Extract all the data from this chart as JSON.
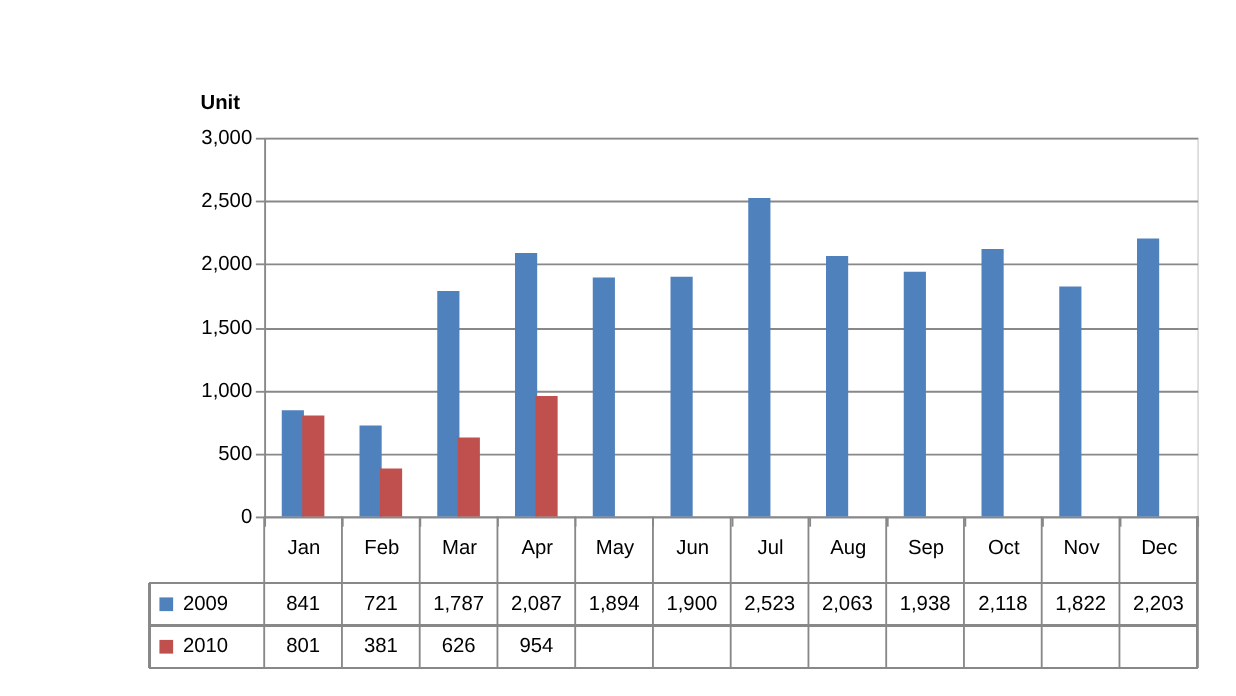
{
  "chart_data": {
    "type": "bar",
    "ylabel": "Unit",
    "categories": [
      "Jan",
      "Feb",
      "Mar",
      "Apr",
      "May",
      "Jun",
      "Jul",
      "Aug",
      "Sep",
      "Oct",
      "Nov",
      "Dec"
    ],
    "series": [
      {
        "name": "2009",
        "color": "#4f81bd",
        "values": [
          841,
          721,
          1787,
          2087,
          1894,
          1900,
          2523,
          2063,
          1938,
          2118,
          1822,
          2203
        ],
        "value_labels": [
          "841",
          "721",
          "1,787",
          "2,087",
          "1,894",
          "1,900",
          "2,523",
          "2,063",
          "1,938",
          "2,118",
          "1,822",
          "2,203"
        ]
      },
      {
        "name": "2010",
        "color": "#c0504d",
        "values": [
          801,
          381,
          626,
          954,
          null,
          null,
          null,
          null,
          null,
          null,
          null,
          null
        ],
        "value_labels": [
          "801",
          "381",
          "626",
          "954",
          null,
          null,
          null,
          null,
          null,
          null,
          null,
          null
        ]
      }
    ],
    "ylim": [
      0,
      3000
    ],
    "yticks": [
      0,
      500,
      {
        "value": 1000,
        "label": "1,000"
      },
      {
        "value": 1500,
        "label": "1,500"
      },
      {
        "value": 2000,
        "label": "2,000"
      },
      {
        "value": 2500,
        "label": "2,500"
      },
      {
        "value": 3000,
        "label": "3,000"
      }
    ],
    "grid": "y",
    "legend": "bottom"
  }
}
